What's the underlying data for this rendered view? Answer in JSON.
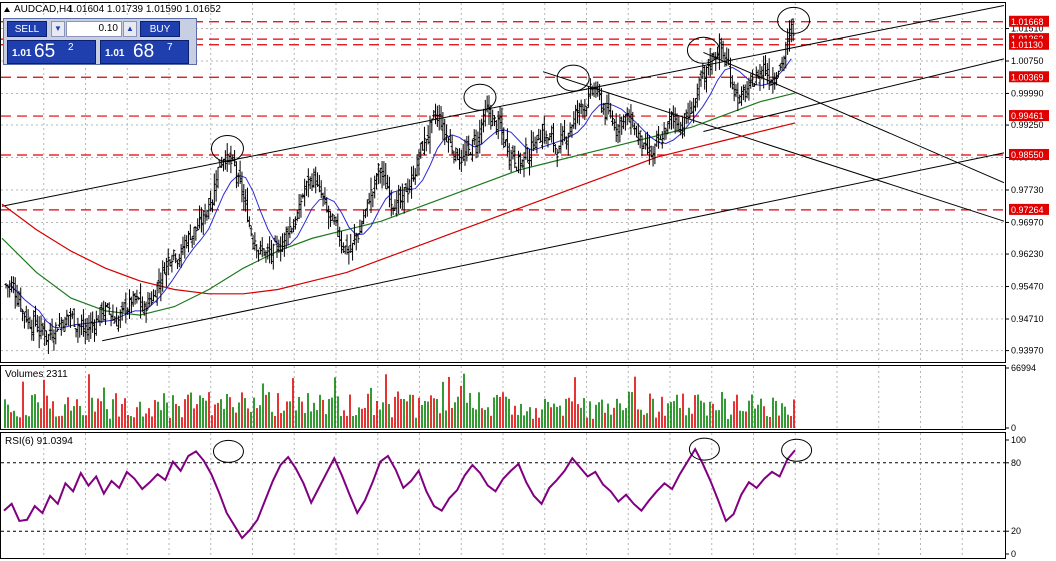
{
  "header": {
    "symbol_line": "AUDCAD,H4",
    "ohlc": "1.01604 1.01739 1.01590 1.01652"
  },
  "trade_panel": {
    "sell_label": "SELL",
    "buy_label": "BUY",
    "lot_value": "0.10",
    "sell_price_prefix": "1.01",
    "sell_price_big": "65",
    "sell_price_sup": "2",
    "buy_price_prefix": "1.01",
    "buy_price_big": "68",
    "buy_price_sup": "7"
  },
  "colors": {
    "price_bars": "#000000",
    "ma_red": "#d40000",
    "ma_green": "#1c7a1c",
    "ma_blue": "#2b2bd6",
    "ma_gray": "#8a8a8a",
    "level_line": "#e00000",
    "level_label_bg": "#e00000",
    "grid": "#b5b5b5",
    "volume_up": "#008000",
    "volume_down": "#e00000",
    "rsi_line": "#800080"
  },
  "chart_data": [
    {
      "panel": "price",
      "type": "ohlc",
      "y_ticks": [
        "1.01510",
        "1.00750",
        "0.99990",
        "0.99250",
        "0.98490",
        "0.97730",
        "0.96970",
        "0.96230",
        "0.95470",
        "0.94710",
        "0.93970"
      ],
      "ylim": [
        0.9375,
        1.0185
      ],
      "levels": [
        {
          "value": 1.01668,
          "label": "1.01668"
        },
        {
          "value": 1.01262,
          "label": "1.01262"
        },
        {
          "value": 1.0113,
          "label": "1.01130"
        },
        {
          "value": 1.00369,
          "label": "1.00369"
        },
        {
          "value": 0.99461,
          "label": "0.99461"
        },
        {
          "value": 0.9855,
          "label": "0.98550"
        },
        {
          "value": 0.97264,
          "label": "0.97264"
        }
      ],
      "close_series": [
        0.955,
        0.952,
        0.948,
        0.946,
        0.944,
        0.943,
        0.945,
        0.947,
        0.948,
        0.946,
        0.944,
        0.946,
        0.948,
        0.949,
        0.947,
        0.948,
        0.95,
        0.951,
        0.949,
        0.952,
        0.956,
        0.96,
        0.963,
        0.962,
        0.966,
        0.968,
        0.97,
        0.975,
        0.982,
        0.986,
        0.983,
        0.978,
        0.972,
        0.966,
        0.963,
        0.962,
        0.963,
        0.966,
        0.969,
        0.972,
        0.978,
        0.98,
        0.976,
        0.971,
        0.968,
        0.965,
        0.963,
        0.967,
        0.972,
        0.977,
        0.982,
        0.978,
        0.975,
        0.974,
        0.978,
        0.983,
        0.988,
        0.992,
        0.994,
        0.99,
        0.987,
        0.985,
        0.986,
        0.989,
        0.993,
        0.995,
        0.992,
        0.988,
        0.986,
        0.984,
        0.986,
        0.989,
        0.991,
        0.989,
        0.987,
        0.989,
        0.993,
        0.996,
        0.998,
        1.001,
        0.998,
        0.995,
        0.993,
        0.994,
        0.993,
        0.99,
        0.986,
        0.985,
        0.988,
        0.992,
        0.994,
        0.993,
        0.995,
        0.999,
        1.003,
        1.008,
        1.01,
        1.007,
        1.002,
        0.998,
        1.0,
        1.003,
        1.006,
        1.004,
        1.006,
        1.009,
        1.015
      ],
      "moving_averages": [
        {
          "color_key": "ma_red",
          "values": [
            0.974,
            0.968,
            0.963,
            0.959,
            0.956,
            0.954,
            0.953,
            0.953,
            0.954,
            0.956,
            0.958,
            0.961,
            0.964,
            0.967,
            0.97,
            0.973,
            0.976,
            0.979,
            0.982,
            0.985,
            0.987,
            0.989,
            0.991,
            0.993
          ]
        },
        {
          "color_key": "ma_green",
          "values": [
            0.966,
            0.958,
            0.952,
            0.949,
            0.948,
            0.95,
            0.954,
            0.959,
            0.963,
            0.966,
            0.968,
            0.97,
            0.973,
            0.976,
            0.979,
            0.982,
            0.984,
            0.986,
            0.988,
            0.99,
            0.992,
            0.995,
            0.998,
            1.0
          ]
        }
      ],
      "channel_lines": [
        {
          "x": [
            0,
            1
          ],
          "y": [
            0.9735,
            1.0205
          ]
        },
        {
          "x": [
            0.1,
            1
          ],
          "y": [
            0.942,
            0.986
          ]
        },
        {
          "x": [
            0.54,
            1
          ],
          "y": [
            1.005,
            0.97
          ]
        },
        {
          "x": [
            0.7,
            1
          ],
          "y": [
            1.0095,
            0.979
          ]
        },
        {
          "x": [
            0.7,
            1
          ],
          "y": [
            0.991,
            1.008
          ]
        }
      ],
      "circles": [
        {
          "x": 0.235,
          "y": 0.987
        },
        {
          "x": 0.487,
          "y": 0.999
        },
        {
          "x": 0.58,
          "y": 1.0035
        },
        {
          "x": 0.71,
          "y": 1.01
        },
        {
          "x": 0.8,
          "y": 1.017
        }
      ]
    },
    {
      "panel": "volumes",
      "type": "bar",
      "title": "Volumes 2311",
      "y_ticks": [
        "66994",
        "0"
      ],
      "ylim": [
        0,
        66994
      ]
    },
    {
      "panel": "rsi",
      "type": "line",
      "title": "RSI(6) 91.0394",
      "y_ticks": [
        "100",
        "80",
        "20",
        "0"
      ],
      "ylim": [
        0,
        100
      ],
      "reference_lines": [
        80,
        20
      ],
      "values": [
        38,
        44,
        29,
        30,
        42,
        36,
        51,
        44,
        62,
        55,
        71,
        60,
        68,
        53,
        64,
        58,
        72,
        66,
        57,
        63,
        70,
        65,
        81,
        73,
        86,
        90,
        82,
        70,
        54,
        36,
        25,
        14,
        21,
        30,
        47,
        64,
        78,
        85,
        75,
        62,
        45,
        58,
        71,
        84,
        69,
        52,
        36,
        47,
        63,
        81,
        86,
        74,
        58,
        64,
        73,
        55,
        42,
        38,
        49,
        56,
        69,
        78,
        71,
        60,
        55,
        66,
        73,
        79,
        63,
        51,
        44,
        58,
        65,
        73,
        84,
        76,
        68,
        72,
        61,
        55,
        46,
        52,
        44,
        38,
        47,
        55,
        62,
        57,
        70,
        81,
        92,
        79,
        64,
        47,
        29,
        35,
        52,
        63,
        58,
        66,
        72,
        68,
        83,
        91
      ],
      "circles": [
        {
          "x": 0.23,
          "y": 90
        },
        {
          "x": 0.705,
          "y": 92
        },
        {
          "x": 0.797,
          "y": 91
        }
      ]
    }
  ]
}
